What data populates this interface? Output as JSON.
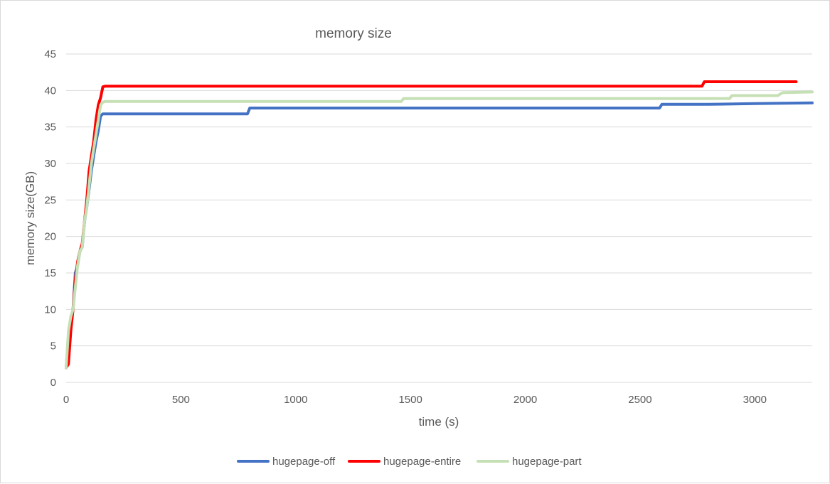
{
  "chart_data": {
    "type": "line",
    "title": "memory size",
    "xlabel": "time (s)",
    "ylabel": "memory size(GB)",
    "xlim": [
      0,
      3250
    ],
    "ylim": [
      0,
      45
    ],
    "xticks": [
      0,
      500,
      1000,
      1500,
      2000,
      2500,
      3000
    ],
    "yticks": [
      0,
      5,
      10,
      15,
      20,
      25,
      30,
      35,
      40,
      45
    ],
    "grid": "horizontal",
    "legend_position": "bottom",
    "series": [
      {
        "name": "hugepage-off",
        "color": "#4472c4",
        "x": [
          0,
          10,
          20,
          30,
          40,
          50,
          60,
          70,
          80,
          90,
          100,
          110,
          120,
          130,
          140,
          150,
          160,
          170,
          200,
          300,
          500,
          600,
          700,
          790,
          800,
          900,
          1000,
          1500,
          2000,
          2500,
          2585,
          2595,
          2800,
          3000,
          3250
        ],
        "y": [
          2,
          6,
          8,
          10,
          15,
          16,
          18,
          18.5,
          22,
          24,
          26.5,
          29,
          31,
          33,
          34.5,
          36.5,
          36.8,
          36.8,
          36.8,
          36.8,
          36.8,
          36.8,
          36.8,
          36.8,
          37.6,
          37.6,
          37.6,
          37.6,
          37.6,
          37.6,
          37.6,
          38.1,
          38.1,
          38.2,
          38.3
        ]
      },
      {
        "name": "hugepage-entire",
        "color": "#ff0000",
        "x": [
          0,
          10,
          20,
          30,
          40,
          50,
          60,
          70,
          80,
          90,
          100,
          110,
          120,
          130,
          140,
          150,
          160,
          170,
          200,
          500,
          1000,
          1500,
          2000,
          2500,
          2770,
          2780,
          3000,
          3180
        ],
        "y": [
          2,
          2.5,
          7,
          10,
          14,
          16.5,
          18,
          19,
          22,
          25,
          29,
          31,
          33,
          36,
          38,
          39,
          40.5,
          40.6,
          40.6,
          40.6,
          40.6,
          40.6,
          40.6,
          40.6,
          40.6,
          41.2,
          41.2,
          41.2
        ]
      },
      {
        "name": "hugepage-part",
        "color": "#c5e0b4",
        "x": [
          0,
          10,
          20,
          30,
          40,
          50,
          60,
          70,
          80,
          90,
          100,
          110,
          120,
          130,
          140,
          150,
          160,
          170,
          200,
          500,
          1000,
          1460,
          1470,
          1500,
          2000,
          2500,
          2890,
          2900,
          3000,
          3100,
          3120,
          3250
        ],
        "y": [
          2,
          7,
          9,
          10,
          13,
          16,
          18,
          18.5,
          22,
          24,
          27,
          30,
          32,
          34,
          36,
          38,
          38.4,
          38.5,
          38.5,
          38.5,
          38.5,
          38.5,
          38.9,
          38.9,
          38.9,
          38.9,
          38.9,
          39.3,
          39.3,
          39.3,
          39.7,
          39.8
        ]
      }
    ]
  }
}
